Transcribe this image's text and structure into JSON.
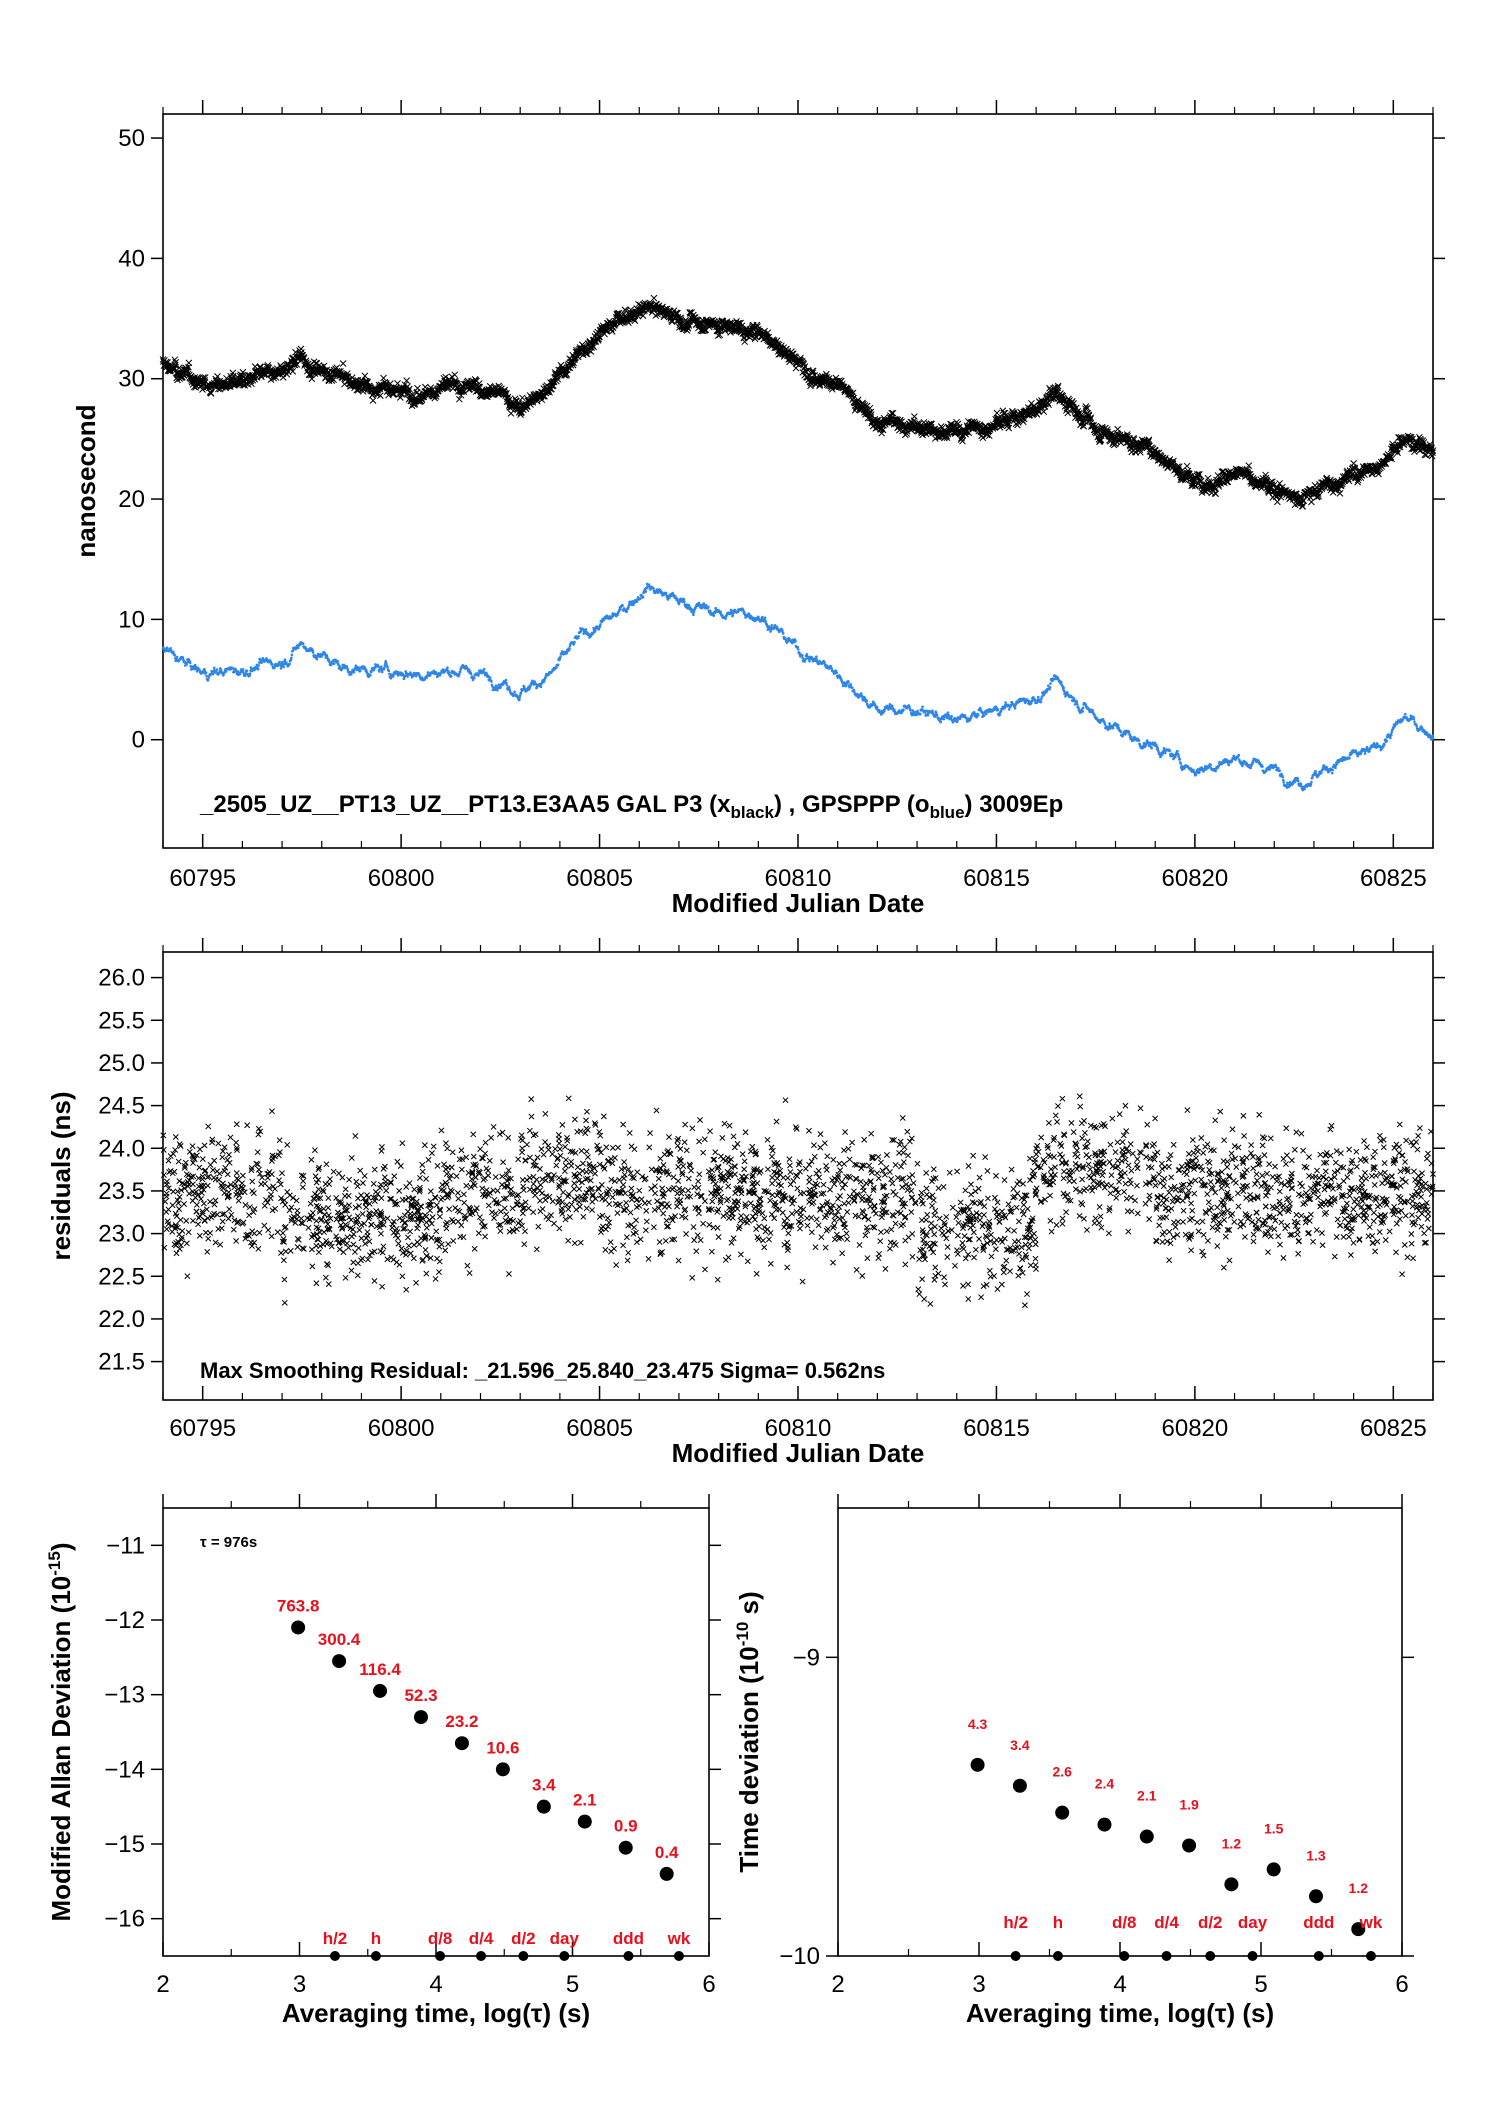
{
  "chart_data": [
    {
      "type": "scatter",
      "xlabel": "Modified Julian Date",
      "ylabel": "nanosecond",
      "xlim": [
        60794,
        60826
      ],
      "ylim": [
        -9,
        52
      ],
      "xticks": [
        60795,
        60800,
        60805,
        60810,
        60815,
        60820,
        60825
      ],
      "yticks": [
        0,
        10,
        20,
        30,
        40,
        50
      ],
      "annotation": {
        "prefix": "_2505_UZ__PT13_UZ__PT13.E3AA5     GAL P3 (x",
        "sub1": "black",
        "mid": ") ,  GPSPPP (o",
        "sub2": "blue",
        "suffix": ")  3009Ep"
      },
      "series": [
        {
          "color": "#000000",
          "marker": "x",
          "points": [
            [
              60794.0,
              31.2
            ],
            [
              60795.0,
              29.5
            ],
            [
              60796.0,
              29.8
            ],
            [
              60797.0,
              30.5
            ],
            [
              60797.5,
              31.5
            ],
            [
              60798.5,
              30.0
            ],
            [
              60799.5,
              29.0
            ],
            [
              60800.5,
              29.0
            ],
            [
              60801.5,
              29.5
            ],
            [
              60802.5,
              28.8
            ],
            [
              60803.0,
              27.5
            ],
            [
              60803.8,
              29.5
            ],
            [
              60804.5,
              32.5
            ],
            [
              60805.5,
              35.0
            ],
            [
              60806.2,
              36.0
            ],
            [
              60807.0,
              35.0
            ],
            [
              60808.0,
              34.5
            ],
            [
              60809.0,
              34.0
            ],
            [
              60810.0,
              31.5
            ],
            [
              60811.0,
              29.5
            ],
            [
              60812.0,
              26.5
            ],
            [
              60813.0,
              26.0
            ],
            [
              60814.0,
              25.5
            ],
            [
              60815.0,
              26.5
            ],
            [
              60816.0,
              27.5
            ],
            [
              60816.5,
              28.8
            ],
            [
              60817.5,
              26.0
            ],
            [
              60818.5,
              24.5
            ],
            [
              60819.0,
              24.0
            ],
            [
              60820.0,
              21.5
            ],
            [
              60821.0,
              22.0
            ],
            [
              60822.0,
              21.0
            ],
            [
              60822.7,
              20.0
            ],
            [
              60823.5,
              21.5
            ],
            [
              60824.5,
              22.5
            ],
            [
              60825.3,
              25.0
            ],
            [
              60826.0,
              24.0
            ]
          ]
        },
        {
          "color": "#2f86e8",
          "marker": "o",
          "points": [
            [
              60794.0,
              7.5
            ],
            [
              60795.0,
              5.5
            ],
            [
              60796.0,
              5.8
            ],
            [
              60797.0,
              6.5
            ],
            [
              60797.5,
              8.0
            ],
            [
              60798.5,
              6.0
            ],
            [
              60799.5,
              5.8
            ],
            [
              60800.5,
              5.5
            ],
            [
              60801.5,
              5.8
            ],
            [
              60802.5,
              5.0
            ],
            [
              60803.0,
              4.0
            ],
            [
              60803.8,
              5.5
            ],
            [
              60804.5,
              8.5
            ],
            [
              60805.5,
              10.5
            ],
            [
              60806.2,
              12.8
            ],
            [
              60807.0,
              11.5
            ],
            [
              60808.0,
              10.5
            ],
            [
              60809.0,
              10.5
            ],
            [
              60810.0,
              7.5
            ],
            [
              60811.0,
              5.5
            ],
            [
              60812.0,
              2.5
            ],
            [
              60813.0,
              2.5
            ],
            [
              60814.0,
              1.5
            ],
            [
              60815.0,
              2.5
            ],
            [
              60816.0,
              3.5
            ],
            [
              60816.5,
              4.8
            ],
            [
              60817.5,
              2.0
            ],
            [
              60818.5,
              0.0
            ],
            [
              60819.0,
              -0.5
            ],
            [
              60820.0,
              -2.5
            ],
            [
              60821.0,
              -1.5
            ],
            [
              60822.0,
              -2.5
            ],
            [
              60822.7,
              -3.5
            ],
            [
              60823.5,
              -2.0
            ],
            [
              60824.5,
              -1.0
            ],
            [
              60825.3,
              1.8
            ],
            [
              60826.0,
              0.5
            ]
          ]
        }
      ]
    },
    {
      "type": "scatter",
      "xlabel": "Modified Julian Date",
      "ylabel": "residuals (ns)",
      "xlim": [
        60794,
        60826
      ],
      "ylim": [
        21.05,
        26.3
      ],
      "xticks": [
        60795,
        60800,
        60805,
        60810,
        60815,
        60820,
        60825
      ],
      "yticks": [
        21.5,
        22.0,
        22.5,
        23.0,
        23.5,
        24.0,
        24.5,
        25.0,
        25.5,
        26.0
      ],
      "ytick_labels": [
        "21.5",
        "22.0",
        "22.5",
        "23.0",
        "23.5",
        "24.0",
        "24.5",
        "25.0",
        "25.5",
        "26.0"
      ],
      "annotation": "Max Smoothing Residual: _21.596_25.840_23.475  Sigma= 0.562ns",
      "min": 21.596,
      "max": 25.84,
      "mean": 23.475,
      "sigma": 0.562,
      "marker": "x",
      "color": "#000000"
    },
    {
      "type": "scatter",
      "xlabel": "Averaging time, log(τ) (s)",
      "ylabel": "Modified Allan Deviation (10",
      "ylabel_sup": "-15",
      "ylabel_end": ")",
      "tau_note": "τ = 976s",
      "xlim": [
        2,
        6
      ],
      "ylim": [
        -16.5,
        -10.5
      ],
      "xticks": [
        2,
        3,
        4,
        5,
        6
      ],
      "yticks": [
        -16,
        -15,
        -14,
        -13,
        -12,
        -11
      ],
      "ytick_labels": [
        "−16",
        "−15",
        "−14",
        "−13",
        "−12",
        "−11"
      ],
      "points": [
        [
          2.99,
          -12.1
        ],
        [
          3.29,
          -12.55
        ],
        [
          3.59,
          -12.95
        ],
        [
          3.89,
          -13.3
        ],
        [
          4.19,
          -13.65
        ],
        [
          4.49,
          -14.0
        ],
        [
          4.79,
          -14.5
        ],
        [
          5.09,
          -14.7
        ],
        [
          5.39,
          -15.05
        ],
        [
          5.69,
          -15.4
        ]
      ],
      "labels": [
        "763.8",
        "300.4",
        "116.4",
        "52.3",
        "23.2",
        "10.6",
        "3.4",
        "2.1",
        "0.9",
        "0.4"
      ],
      "period_markers": [
        {
          "label": "h/2",
          "x": 3.26
        },
        {
          "label": "h",
          "x": 3.56
        },
        {
          "label": "d/8",
          "x": 4.03
        },
        {
          "label": "d/4",
          "x": 4.33
        },
        {
          "label": "d/2",
          "x": 4.64
        },
        {
          "label": "day",
          "x": 4.94
        },
        {
          "label": "ddd",
          "x": 5.41
        },
        {
          "label": "wk",
          "x": 5.78
        }
      ]
    },
    {
      "type": "scatter",
      "xlabel": "Averaging time, log(τ) (s)",
      "ylabel": "Time deviation (10",
      "ylabel_sup": "-10",
      "ylabel_end": " s)",
      "xlim": [
        2,
        6
      ],
      "ylim": [
        -10,
        -8.5
      ],
      "xticks": [
        2,
        3,
        4,
        5,
        6
      ],
      "yticks": [
        -10,
        -9
      ],
      "ytick_labels": [
        "−10",
        "−9"
      ],
      "points": [
        [
          2.99,
          -9.36
        ],
        [
          3.29,
          -9.43
        ],
        [
          3.59,
          -9.52
        ],
        [
          3.89,
          -9.56
        ],
        [
          4.19,
          -9.6
        ],
        [
          4.49,
          -9.63
        ],
        [
          4.79,
          -9.76
        ],
        [
          5.09,
          -9.71
        ],
        [
          5.39,
          -9.8
        ],
        [
          5.69,
          -9.91
        ]
      ],
      "labels": [
        "4.3",
        "3.4",
        "2.6",
        "2.4",
        "2.1",
        "1.9",
        "1.2",
        "1.5",
        "1.3",
        "1.2"
      ],
      "period_markers": [
        {
          "label": "h/2",
          "x": 3.26
        },
        {
          "label": "h",
          "x": 3.56
        },
        {
          "label": "d/8",
          "x": 4.03
        },
        {
          "label": "d/4",
          "x": 4.33
        },
        {
          "label": "d/2",
          "x": 4.64
        },
        {
          "label": "day",
          "x": 4.94
        },
        {
          "label": "ddd",
          "x": 5.41
        },
        {
          "label": "wk",
          "x": 5.78
        }
      ]
    }
  ]
}
